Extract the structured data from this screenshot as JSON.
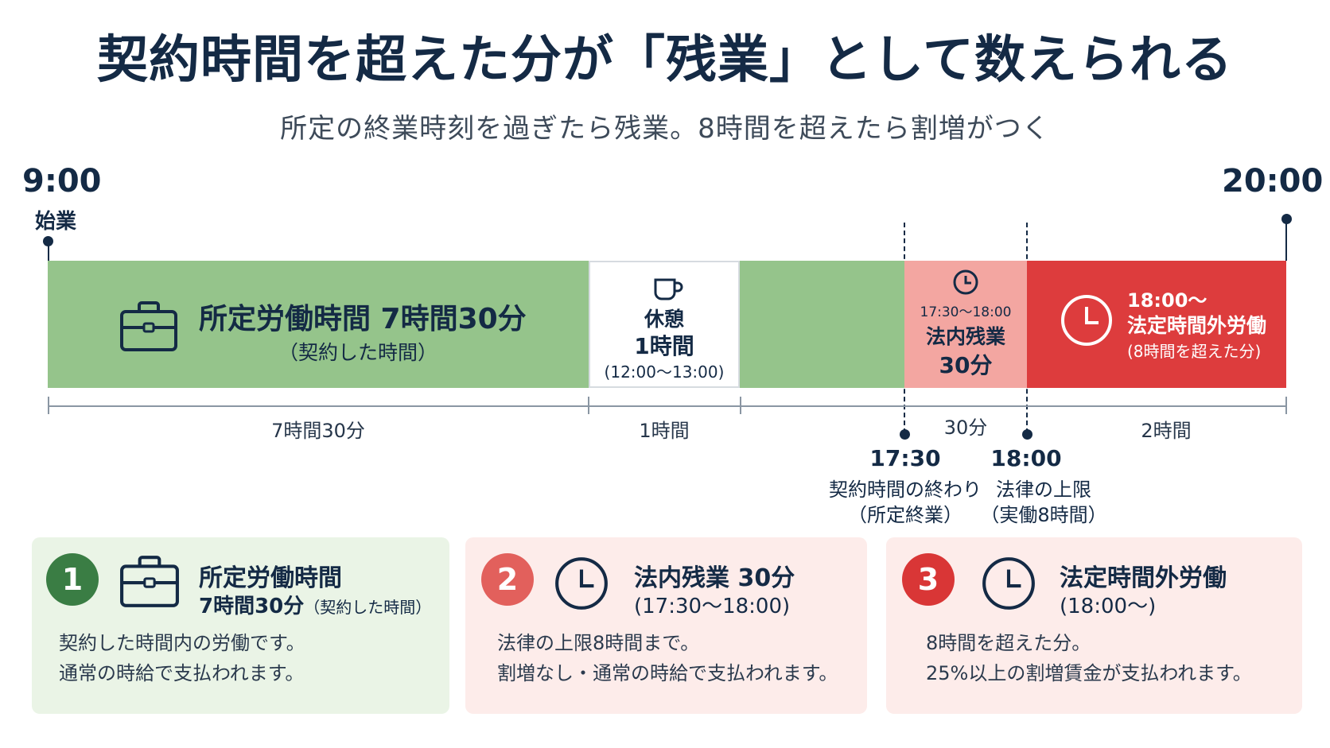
{
  "header": {
    "title": "契約時間を超えた分が「残業」として数えられる",
    "subtitle": "所定の終業時刻を過ぎたら残業。8時間を超えたら割増がつく"
  },
  "timeline": {
    "start_time": "9:00",
    "start_label": "始業",
    "end_time": "20:00",
    "segments": {
      "work": {
        "title": "所定労働時間 7時間30分",
        "note": "（契約した時間）"
      },
      "break": {
        "title": "休憩",
        "duration": "1時間",
        "range": "(12:00〜13:00)"
      },
      "legal": {
        "range": "17:30〜18:00",
        "title": "法内残業",
        "duration": "30分"
      },
      "statutory": {
        "start": "18:00〜",
        "title": "法定時間外労働",
        "note": "(8時間を超えた分)"
      }
    },
    "ruler": [
      "7時間30分",
      "1時間",
      "30分",
      "2時間"
    ],
    "markers": [
      {
        "time": "17:30",
        "label": "契約時間の終わり",
        "note": "（所定終業）"
      },
      {
        "time": "18:00",
        "label": "法律の上限",
        "note": "（実働8時間）"
      }
    ],
    "colors": {
      "work": "#95c48b",
      "legal": "#f3a6a1",
      "statutory": "#dd3c3d"
    }
  },
  "cards": [
    {
      "num": "1",
      "icon": "briefcase-icon",
      "title": "所定労働時間",
      "sub_bold": "7時間30分",
      "sub_note": "（契約した時間）",
      "lines": [
        "契約した時間内の労働です。",
        "通常の時給で支払われます。"
      ],
      "color": "#3a7d44"
    },
    {
      "num": "2",
      "icon": "clock-icon",
      "title": "法内残業 30分",
      "sub_note": "(17:30〜18:00)",
      "lines": [
        "法律の上限8時間まで。",
        "割増なし・通常の時給で支払われます。"
      ],
      "color": "#e2605c"
    },
    {
      "num": "3",
      "icon": "clock-icon",
      "title": "法定時間外労働",
      "sub_note": "(18:00〜)",
      "lines": [
        "8時間を超えた分。",
        "25%以上の割増賃金が支払われます。"
      ],
      "color": "#d93636"
    }
  ]
}
